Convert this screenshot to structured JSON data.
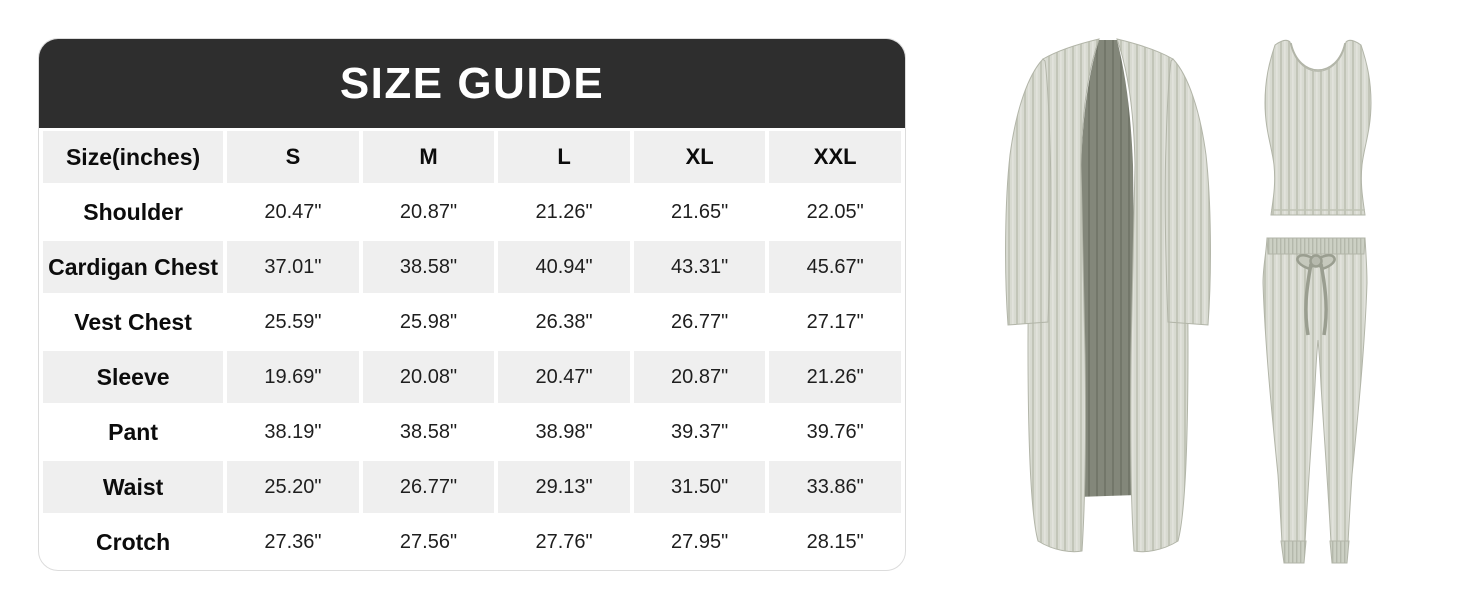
{
  "size_guide": {
    "title": "SIZE GUIDE",
    "unit_header": "Size(inches)",
    "sizes": [
      "S",
      "M",
      "L",
      "XL",
      "XXL"
    ],
    "rows": [
      {
        "label": "Shoulder",
        "values": [
          "20.47\"",
          "20.87\"",
          "21.26\"",
          "21.65\"",
          "22.05\""
        ]
      },
      {
        "label": "Cardigan Chest",
        "values": [
          "37.01\"",
          "38.58\"",
          "40.94\"",
          "43.31\"",
          "45.67\""
        ]
      },
      {
        "label": "Vest Chest",
        "values": [
          "25.59\"",
          "25.98\"",
          "26.38\"",
          "26.77\"",
          "27.17\""
        ]
      },
      {
        "label": "Sleeve",
        "values": [
          "19.69\"",
          "20.08\"",
          "20.47\"",
          "20.87\"",
          "21.26\""
        ]
      },
      {
        "label": "Pant",
        "values": [
          "38.19\"",
          "38.58\"",
          "38.98\"",
          "39.37\"",
          "39.76\""
        ]
      },
      {
        "label": "Waist",
        "values": [
          "25.20\"",
          "26.77\"",
          "29.13\"",
          "31.50\"",
          "33.86\""
        ]
      },
      {
        "label": "Crotch",
        "values": [
          "27.36\"",
          "27.56\"",
          "27.76\"",
          "27.95\"",
          "28.15\""
        ]
      }
    ]
  },
  "colors": {
    "title_bar_bg": "#2e2e2e",
    "title_text": "#ffffff",
    "header_row_bg": "#efefef",
    "alt_row_bg": "#efefef",
    "row_bg": "#ffffff",
    "table_border": "#dcdcdc",
    "fabric_base": "#d8dad1",
    "fabric_rib": "#c2c5b8",
    "fabric_edge": "#b2b5a8",
    "cardigan_lining": "#83877a",
    "drawstring": "#9a9e90"
  },
  "product_art": {
    "items": [
      "cardigan",
      "tank-top",
      "pants"
    ],
    "description": "3-piece ribbed knit lounge set in heather sage gray"
  },
  "chart_data": {
    "type": "table",
    "title": "SIZE GUIDE",
    "columns": [
      "Size(inches)",
      "S",
      "M",
      "L",
      "XL",
      "XXL"
    ],
    "rows": [
      [
        "Shoulder",
        "20.47\"",
        "20.87\"",
        "21.26\"",
        "21.65\"",
        "22.05\""
      ],
      [
        "Cardigan Chest",
        "37.01\"",
        "38.58\"",
        "40.94\"",
        "43.31\"",
        "45.67\""
      ],
      [
        "Vest Chest",
        "25.59\"",
        "25.98\"",
        "26.38\"",
        "26.77\"",
        "27.17\""
      ],
      [
        "Sleeve",
        "19.69\"",
        "20.08\"",
        "20.47\"",
        "20.87\"",
        "21.26\""
      ],
      [
        "Pant",
        "38.19\"",
        "38.58\"",
        "38.98\"",
        "39.37\"",
        "39.76\""
      ],
      [
        "Waist",
        "25.20\"",
        "26.77\"",
        "29.13\"",
        "31.50\"",
        "33.86\""
      ],
      [
        "Crotch",
        "27.36\"",
        "27.56\"",
        "27.76\"",
        "27.95\"",
        "28.15\""
      ]
    ]
  }
}
